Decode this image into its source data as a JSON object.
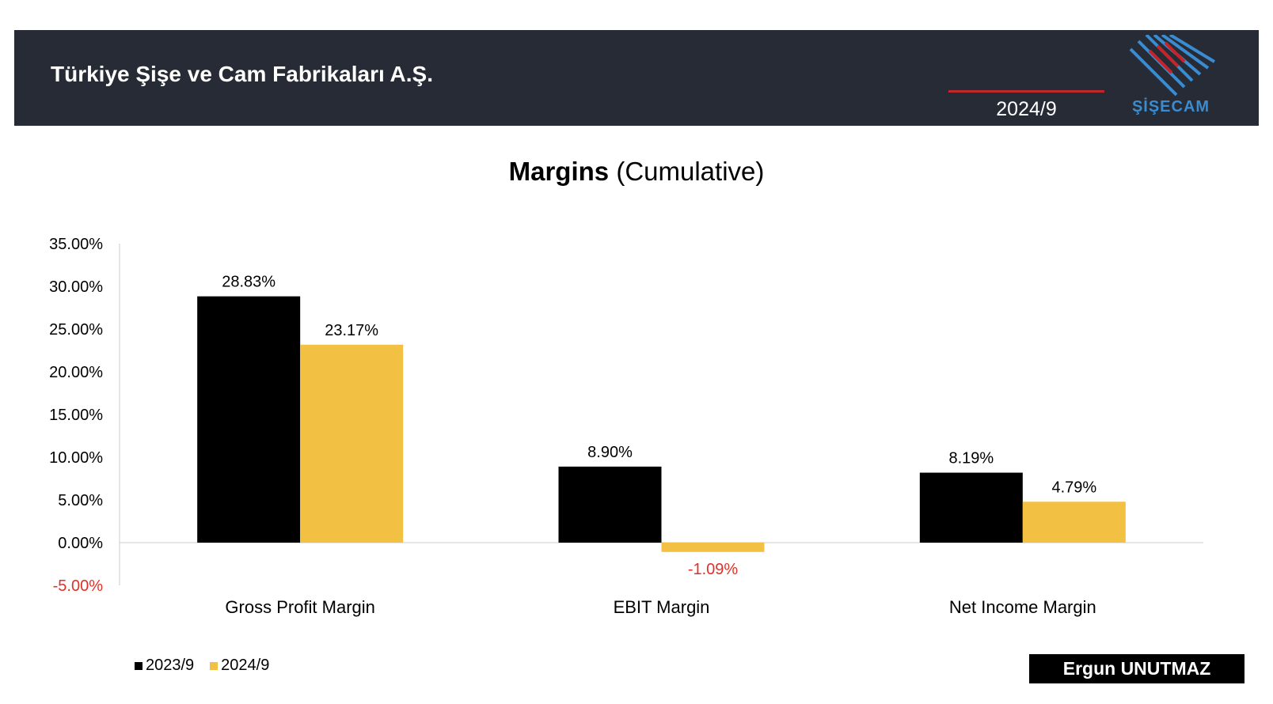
{
  "header": {
    "company": "Türkiye Şişe ve Cam Fabrikaları A.Ş.",
    "period": "2024/9",
    "logo_text": "ŞİŞECAM",
    "accent_color": "#c0272d",
    "logo_color": "#3b8bd0",
    "background_color": "#262b35"
  },
  "title": {
    "bold": "Margins",
    "normal": "(Cumulative)"
  },
  "chart_data": {
    "type": "bar",
    "categories": [
      "Gross Profit Margin",
      "EBIT Margin",
      "Net Income Margin"
    ],
    "series": [
      {
        "name": "2023/9",
        "values": [
          28.83,
          8.9,
          8.19
        ],
        "labels": [
          "28.83%",
          "8.90%",
          "8.19%"
        ],
        "color": "#000000"
      },
      {
        "name": "2024/9",
        "values": [
          23.17,
          -1.09,
          4.79
        ],
        "labels": [
          "23.17%",
          "-1.09%",
          "4.79%"
        ],
        "color": "#f2c144"
      }
    ],
    "ylim": [
      -5,
      35
    ],
    "yticks": [
      35,
      30,
      25,
      20,
      15,
      10,
      5,
      0,
      -5
    ],
    "ytick_labels": [
      "35.00%",
      "30.00%",
      "25.00%",
      "20.00%",
      "15.00%",
      "10.00%",
      "5.00%",
      "0.00%",
      "-5.00%"
    ],
    "negative_color": "#e0302a",
    "legend_position": "bottom-left",
    "grid": false
  },
  "footer": {
    "author": "Ergun UNUTMAZ"
  }
}
